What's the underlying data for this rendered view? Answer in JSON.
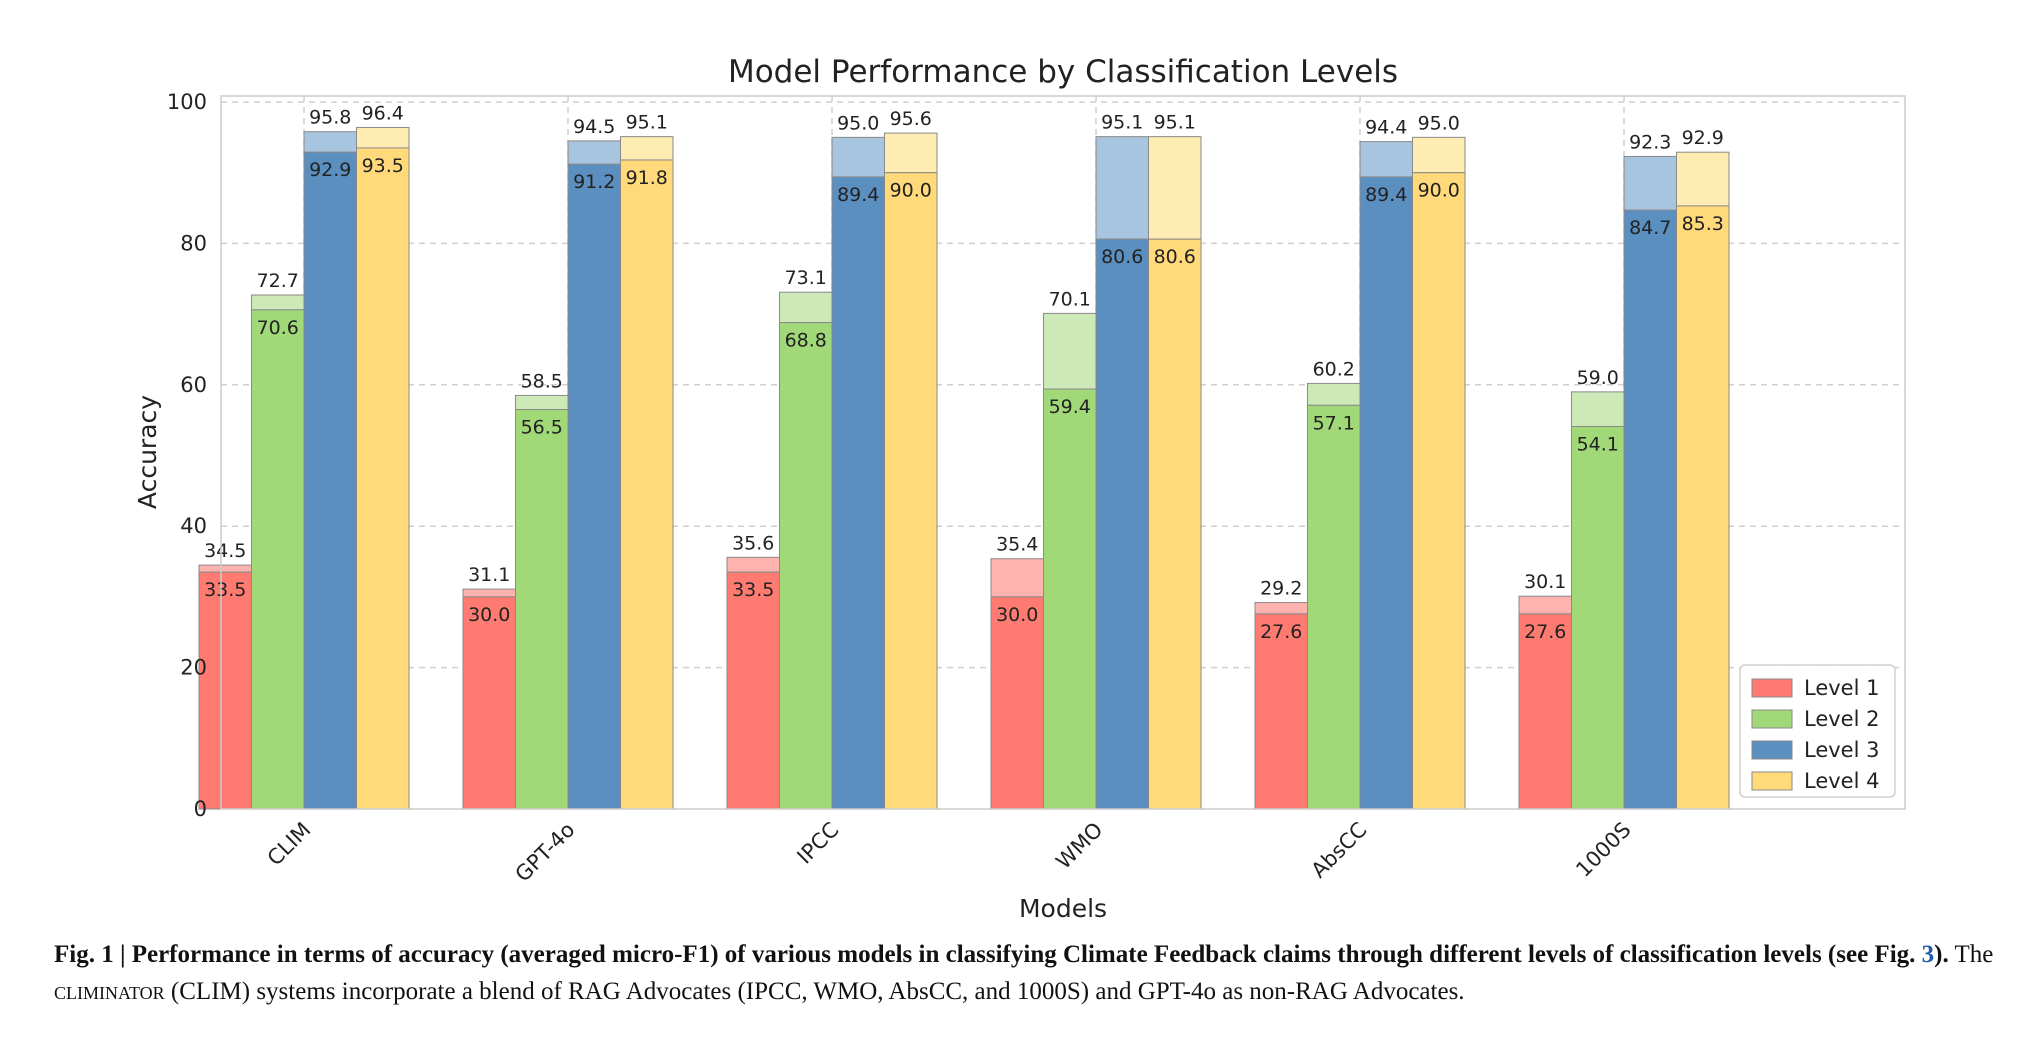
{
  "chart_data": {
    "type": "bar",
    "title": "Model Performance by Classification Levels",
    "xlabel": "Models",
    "ylabel": "Accuracy",
    "ylim": [
      0,
      100
    ],
    "yticks": [
      0,
      20,
      40,
      60,
      80,
      100
    ],
    "grid": true,
    "legend_position": "bottom-right",
    "categories": [
      "CLIM",
      "GPT-4o",
      "IPCC",
      "WMO",
      "AbsCC",
      "1000S"
    ],
    "series": [
      {
        "name": "Level 1",
        "color": "#ff7b72",
        "light_color": "#ffb3ae",
        "values": [
          33.5,
          30.0,
          33.5,
          30.0,
          27.6,
          27.6
        ],
        "upper_values": [
          34.5,
          31.1,
          35.6,
          35.4,
          29.2,
          30.1
        ]
      },
      {
        "name": "Level 2",
        "color": "#a1d979",
        "light_color": "#cde9b8",
        "values": [
          70.6,
          56.5,
          68.8,
          59.4,
          57.1,
          54.1
        ],
        "upper_values": [
          72.7,
          58.5,
          73.1,
          70.1,
          60.2,
          59.0
        ]
      },
      {
        "name": "Level 3",
        "color": "#5a8fc0",
        "light_color": "#a8c5df",
        "values": [
          92.9,
          91.2,
          89.4,
          80.6,
          89.4,
          84.7
        ],
        "upper_values": [
          95.8,
          94.5,
          95.0,
          95.1,
          94.4,
          92.3
        ]
      },
      {
        "name": "Level 4",
        "color": "#ffd97a",
        "light_color": "#ffecb3",
        "values": [
          93.5,
          91.8,
          90.0,
          80.6,
          90.0,
          85.3
        ],
        "upper_values": [
          96.4,
          95.1,
          95.6,
          95.1,
          95.0,
          92.9
        ]
      }
    ]
  },
  "caption": {
    "bold_text": "Fig. 1 | Performance in terms of accuracy (averaged micro-F1) of various models in classifying Climate Feedback claims through different levels of classification levels (see Fig. ",
    "fig_ref": "3",
    "bold_end": ").",
    "text_1": " The ",
    "small_caps": "climinator",
    "text_2": " (CLIM) systems incorporate a blend of RAG Advocates (IPCC, WMO, AbsCC, and 1000S) and GPT-4o as non-RAG Advocates."
  }
}
